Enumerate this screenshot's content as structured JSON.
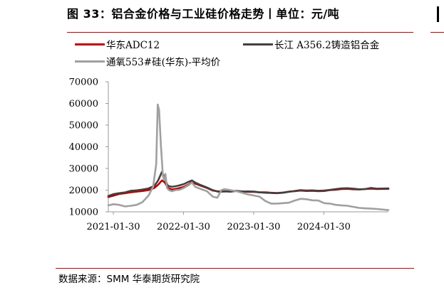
{
  "header": {
    "title": "图 33：铝合金价格与工业硅价格走势丨单位：元/吨"
  },
  "source": "数据来源：SMM 华泰期货研究院",
  "colors": {
    "accent": "#c00000",
    "series_adc12": "#c00000",
    "series_a356": "#404040",
    "series_si553": "#a0a0a0"
  },
  "chart_data": {
    "type": "line",
    "title": "",
    "xlabel": "",
    "ylabel": "",
    "ylim": [
      10000,
      70000
    ],
    "yticks": [
      10000,
      20000,
      30000,
      40000,
      50000,
      60000,
      70000
    ],
    "ytick_labels": [
      "10000",
      "20000",
      "30000",
      "40000",
      "50000",
      "60000",
      "70000"
    ],
    "xlim": [
      "2021-01-04",
      "2024-12-31"
    ],
    "xticks": [
      "2021-01-30",
      "2022-01-30",
      "2023-01-30",
      "2024-01-30"
    ],
    "grid": false,
    "legend_position": "top",
    "series": [
      {
        "name": "华东ADC12",
        "color": "#c00000",
        "x": [
          "2021-01-04",
          "2021-02-01",
          "2021-03-01",
          "2021-04-01",
          "2021-05-01",
          "2021-06-01",
          "2021-07-01",
          "2021-08-01",
          "2021-09-01",
          "2021-09-20",
          "2021-10-10",
          "2021-10-25",
          "2021-11-10",
          "2021-12-01",
          "2022-01-01",
          "2022-02-01",
          "2022-03-01",
          "2022-03-15",
          "2022-04-01",
          "2022-05-01",
          "2022-06-01",
          "2022-07-01",
          "2022-08-01",
          "2022-09-01",
          "2022-10-01",
          "2022-11-01",
          "2022-12-01",
          "2023-01-01",
          "2023-02-01",
          "2023-03-01",
          "2023-04-01",
          "2023-05-01",
          "2023-06-01",
          "2023-07-01",
          "2023-08-01",
          "2023-09-01",
          "2023-10-01",
          "2023-11-01",
          "2023-12-01",
          "2024-01-01",
          "2024-02-01",
          "2024-03-01",
          "2024-04-01",
          "2024-05-01",
          "2024-06-01",
          "2024-07-01",
          "2024-08-01",
          "2024-09-01",
          "2024-10-01",
          "2024-11-01",
          "2024-12-31"
        ],
        "values": [
          16800,
          17500,
          18200,
          18600,
          19000,
          19300,
          19600,
          20000,
          21000,
          22500,
          24500,
          23500,
          21000,
          20300,
          20800,
          21500,
          22800,
          23800,
          23000,
          22000,
          21000,
          19800,
          19400,
          19500,
          19300,
          19600,
          19400,
          19200,
          19200,
          19000,
          19000,
          18800,
          18700,
          18900,
          19300,
          19500,
          19800,
          19600,
          19700,
          19500,
          19600,
          20000,
          20200,
          20500,
          20600,
          20400,
          20300,
          20500,
          20700,
          20500,
          20600
        ]
      },
      {
        "name": "长江 A356.2铸造铝合金",
        "color": "#404040",
        "x": [
          "2021-01-04",
          "2021-02-01",
          "2021-03-01",
          "2021-04-01",
          "2021-05-01",
          "2021-06-01",
          "2021-07-01",
          "2021-08-01",
          "2021-09-01",
          "2021-09-20",
          "2021-10-10",
          "2021-10-25",
          "2021-11-10",
          "2021-12-01",
          "2022-01-01",
          "2022-02-01",
          "2022-03-01",
          "2022-03-15",
          "2022-04-01",
          "2022-05-01",
          "2022-06-01",
          "2022-07-01",
          "2022-08-01",
          "2022-09-01",
          "2022-10-01",
          "2022-11-01",
          "2022-12-01",
          "2023-01-01",
          "2023-02-01",
          "2023-03-01",
          "2023-04-01",
          "2023-05-01",
          "2023-06-01",
          "2023-07-01",
          "2023-08-01",
          "2023-09-01",
          "2023-10-01",
          "2023-11-01",
          "2023-12-01",
          "2024-01-01",
          "2024-02-01",
          "2024-03-01",
          "2024-04-01",
          "2024-05-01",
          "2024-06-01",
          "2024-07-01",
          "2024-08-01",
          "2024-09-01",
          "2024-10-01",
          "2024-11-01",
          "2024-12-31"
        ],
        "values": [
          17300,
          18200,
          18600,
          19000,
          19700,
          19900,
          20300,
          20800,
          22000,
          24500,
          28500,
          25000,
          22000,
          21500,
          22000,
          22800,
          24000,
          24500,
          23500,
          22300,
          21200,
          20000,
          19200,
          19400,
          19300,
          19700,
          19300,
          19400,
          19300,
          19000,
          18800,
          18700,
          18600,
          18800,
          19200,
          19600,
          20000,
          19800,
          19900,
          19700,
          19800,
          20100,
          20500,
          20800,
          20900,
          20700,
          20400,
          20500,
          21000,
          20700,
          20800
        ]
      },
      {
        "name": "通氧553#硅(华东)-平均价",
        "color": "#a0a0a0",
        "x": [
          "2021-01-04",
          "2021-02-01",
          "2021-03-01",
          "2021-04-01",
          "2021-05-01",
          "2021-06-01",
          "2021-07-01",
          "2021-08-01",
          "2021-08-25",
          "2021-09-10",
          "2021-09-18",
          "2021-09-25",
          "2021-10-05",
          "2021-10-15",
          "2021-10-22",
          "2021-10-28",
          "2021-11-05",
          "2021-11-15",
          "2021-12-01",
          "2021-12-20",
          "2022-01-10",
          "2022-02-01",
          "2022-03-01",
          "2022-03-15",
          "2022-04-01",
          "2022-05-01",
          "2022-06-01",
          "2022-07-01",
          "2022-07-25",
          "2022-08-15",
          "2022-09-01",
          "2022-10-01",
          "2022-11-01",
          "2022-12-01",
          "2023-01-01",
          "2023-02-01",
          "2023-03-01",
          "2023-04-01",
          "2023-05-01",
          "2023-06-01",
          "2023-07-01",
          "2023-08-01",
          "2023-09-01",
          "2023-10-01",
          "2023-11-01",
          "2023-12-01",
          "2024-01-01",
          "2024-02-01",
          "2024-03-01",
          "2024-04-01",
          "2024-05-01",
          "2024-06-01",
          "2024-07-01",
          "2024-08-01",
          "2024-09-01",
          "2024-10-01",
          "2024-11-01",
          "2024-12-31"
        ],
        "values": [
          13000,
          13500,
          13200,
          12500,
          12800,
          13200,
          14500,
          17500,
          21500,
          32000,
          59500,
          57000,
          40000,
          26500,
          24500,
          27500,
          21000,
          20000,
          19500,
          20000,
          20200,
          21000,
          22500,
          23500,
          21500,
          20500,
          19500,
          17000,
          16500,
          20000,
          20500,
          20000,
          19500,
          18800,
          18000,
          17500,
          17000,
          15000,
          13800,
          13800,
          14000,
          14200,
          15200,
          16000,
          15800,
          15300,
          15200,
          14000,
          13800,
          13200,
          13000,
          12800,
          12300,
          11800,
          11600,
          11500,
          11300,
          10800
        ]
      }
    ]
  }
}
